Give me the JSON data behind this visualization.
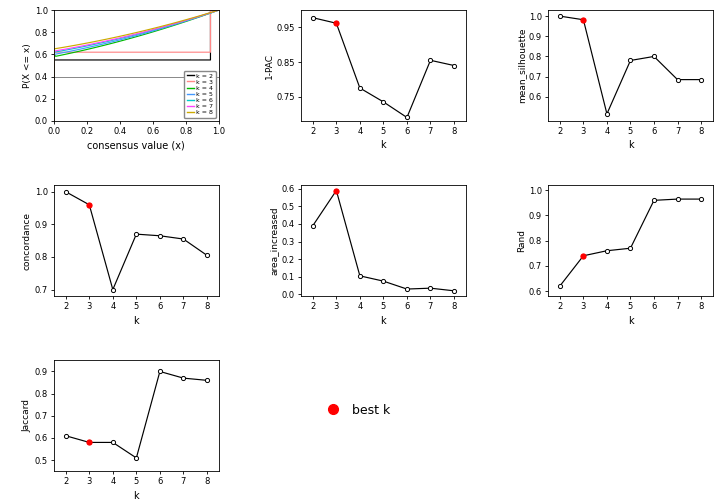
{
  "k_values": [
    2,
    3,
    4,
    5,
    6,
    7,
    8
  ],
  "one_minus_pac": [
    0.978,
    0.962,
    0.775,
    0.735,
    0.69,
    0.855,
    0.84
  ],
  "mean_silhouette": [
    1.0,
    0.982,
    0.515,
    0.78,
    0.8,
    0.685,
    0.685
  ],
  "concordance": [
    1.0,
    0.96,
    0.7,
    0.87,
    0.865,
    0.855,
    0.805
  ],
  "area_increased": [
    0.39,
    0.59,
    0.105,
    0.075,
    0.03,
    0.035,
    0.02
  ],
  "rand": [
    0.62,
    0.74,
    0.76,
    0.77,
    0.96,
    0.965,
    0.965
  ],
  "jaccard": [
    0.61,
    0.58,
    0.58,
    0.51,
    0.9,
    0.87,
    0.86
  ],
  "best_k": 3,
  "ecdf_colors": [
    "#000000",
    "#FF8888",
    "#00BB00",
    "#4499FF",
    "#00CCCC",
    "#FF44FF",
    "#CCAA00"
  ],
  "ecdf_labels": [
    "k = 2",
    "k = 3",
    "k = 4",
    "k = 5",
    "k = 6",
    "k = 7",
    "k = 8"
  ],
  "bg_color": "#FFFFFF"
}
